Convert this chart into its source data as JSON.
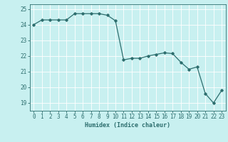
{
  "x": [
    0,
    1,
    2,
    3,
    4,
    5,
    6,
    7,
    8,
    9,
    10,
    11,
    12,
    13,
    14,
    15,
    16,
    17,
    18,
    19,
    20,
    21,
    22,
    23
  ],
  "y": [
    24.0,
    24.3,
    24.3,
    24.3,
    24.3,
    24.7,
    24.7,
    24.7,
    24.7,
    24.6,
    24.25,
    21.75,
    21.85,
    21.85,
    22.0,
    22.1,
    22.2,
    22.15,
    21.6,
    21.15,
    21.3,
    19.6,
    19.0,
    19.8
  ],
  "line_color": "#2d6e6e",
  "marker": "D",
  "marker_size": 1.8,
  "bg_color": "#c8f0f0",
  "grid_color": "#ffffff",
  "xlabel": "Humidex (Indice chaleur)",
  "ylim": [
    18.5,
    25.3
  ],
  "xlim": [
    -0.5,
    23.5
  ],
  "yticks": [
    19,
    20,
    21,
    22,
    23,
    24,
    25
  ],
  "xticks": [
    0,
    1,
    2,
    3,
    4,
    5,
    6,
    7,
    8,
    9,
    10,
    11,
    12,
    13,
    14,
    15,
    16,
    17,
    18,
    19,
    20,
    21,
    22,
    23
  ],
  "tick_color": "#2d6e6e",
  "label_fontsize": 6.0,
  "tick_fontsize": 5.5,
  "spine_color": "#2d6e6e",
  "linewidth": 0.9
}
